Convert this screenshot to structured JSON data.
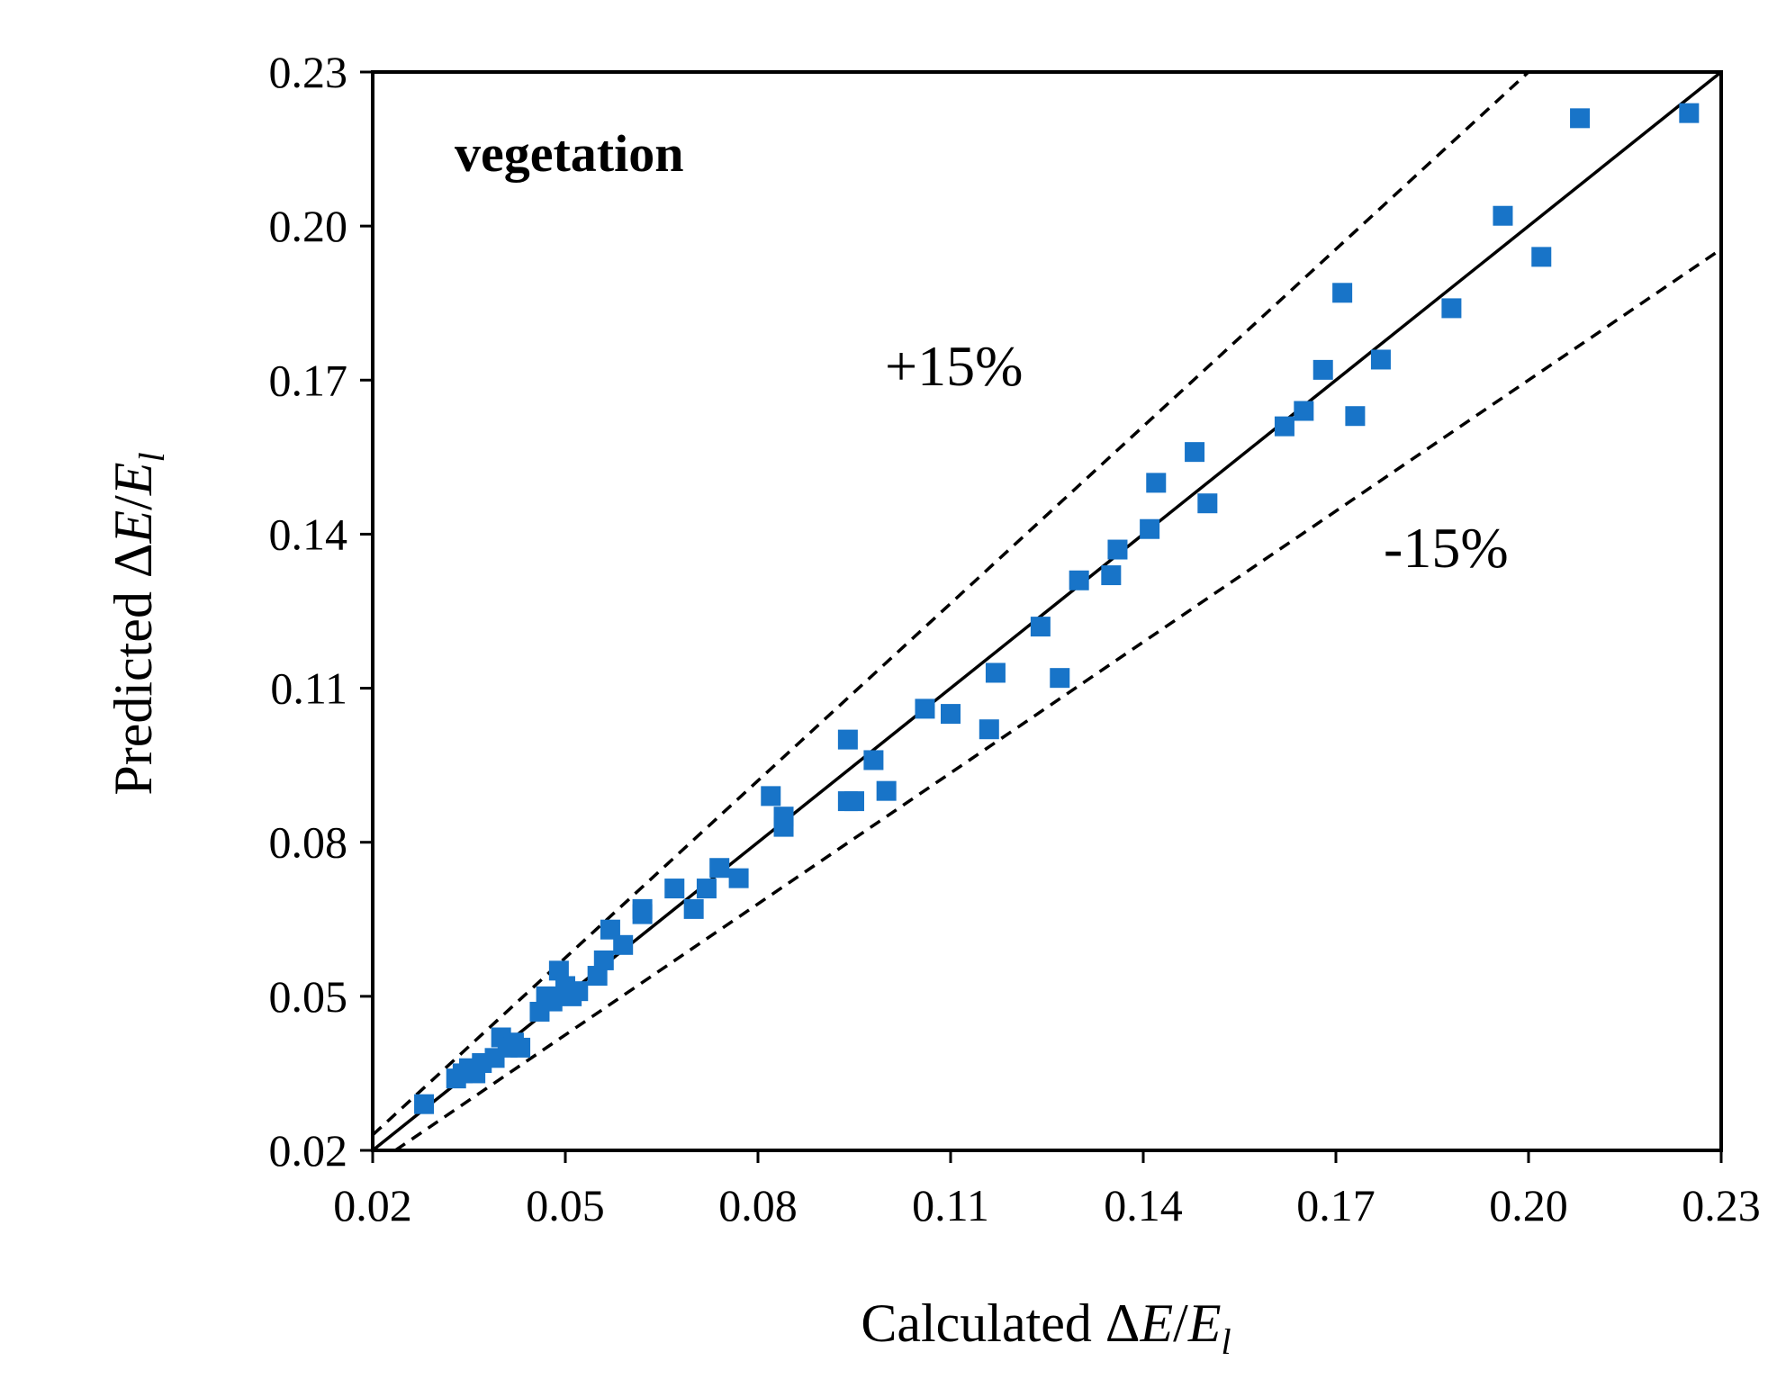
{
  "chart_data": {
    "type": "scatter",
    "panel_label": "vegetation",
    "xlabel": {
      "prefix": "Calculated ",
      "delta": "Δ",
      "e1": "E",
      "slash": "/",
      "e2": "E",
      "sub": "l"
    },
    "ylabel": {
      "prefix": "Predicted ",
      "delta": "Δ",
      "e1": "E",
      "slash": "/",
      "e2": "E",
      "sub": "l"
    },
    "xlim": [
      0.02,
      0.23
    ],
    "ylim": [
      0.02,
      0.23
    ],
    "x_ticks": [
      "0.02",
      "0.05",
      "0.08",
      "0.11",
      "0.14",
      "0.17",
      "0.20",
      "0.23"
    ],
    "y_ticks": [
      "0.02",
      "0.05",
      "0.08",
      "0.11",
      "0.14",
      "0.17",
      "0.20",
      "0.23"
    ],
    "grid": false,
    "reference_lines": [
      {
        "slope": 1.0,
        "style": "solid"
      },
      {
        "slope": 1.15,
        "style": "dashed",
        "label": "+15%"
      },
      {
        "slope": 0.85,
        "style": "dashed",
        "label": "-15%"
      }
    ],
    "marker_color": "#1874c8",
    "points": [
      [
        0.028,
        0.029
      ],
      [
        0.033,
        0.034
      ],
      [
        0.034,
        0.035
      ],
      [
        0.035,
        0.036
      ],
      [
        0.036,
        0.035
      ],
      [
        0.037,
        0.037
      ],
      [
        0.039,
        0.038
      ],
      [
        0.04,
        0.042
      ],
      [
        0.041,
        0.04
      ],
      [
        0.042,
        0.041
      ],
      [
        0.043,
        0.04
      ],
      [
        0.046,
        0.047
      ],
      [
        0.047,
        0.05
      ],
      [
        0.048,
        0.049
      ],
      [
        0.049,
        0.055
      ],
      [
        0.05,
        0.052
      ],
      [
        0.051,
        0.05
      ],
      [
        0.052,
        0.051
      ],
      [
        0.055,
        0.054
      ],
      [
        0.056,
        0.057
      ],
      [
        0.057,
        0.063
      ],
      [
        0.059,
        0.06
      ],
      [
        0.062,
        0.067
      ],
      [
        0.062,
        0.066
      ],
      [
        0.067,
        0.071
      ],
      [
        0.07,
        0.067
      ],
      [
        0.072,
        0.071
      ],
      [
        0.074,
        0.075
      ],
      [
        0.077,
        0.073
      ],
      [
        0.082,
        0.089
      ],
      [
        0.084,
        0.085
      ],
      [
        0.084,
        0.083
      ],
      [
        0.094,
        0.088
      ],
      [
        0.095,
        0.088
      ],
      [
        0.094,
        0.1
      ],
      [
        0.098,
        0.096
      ],
      [
        0.1,
        0.09
      ],
      [
        0.106,
        0.106
      ],
      [
        0.11,
        0.105
      ],
      [
        0.116,
        0.102
      ],
      [
        0.117,
        0.113
      ],
      [
        0.124,
        0.122
      ],
      [
        0.127,
        0.112
      ],
      [
        0.13,
        0.131
      ],
      [
        0.135,
        0.132
      ],
      [
        0.136,
        0.137
      ],
      [
        0.141,
        0.141
      ],
      [
        0.142,
        0.15
      ],
      [
        0.148,
        0.156
      ],
      [
        0.15,
        0.146
      ],
      [
        0.162,
        0.161
      ],
      [
        0.165,
        0.164
      ],
      [
        0.168,
        0.172
      ],
      [
        0.171,
        0.187
      ],
      [
        0.173,
        0.163
      ],
      [
        0.177,
        0.174
      ],
      [
        0.188,
        0.184
      ],
      [
        0.196,
        0.202
      ],
      [
        0.202,
        0.194
      ],
      [
        0.208,
        0.221
      ],
      [
        0.225,
        0.222
      ]
    ]
  }
}
